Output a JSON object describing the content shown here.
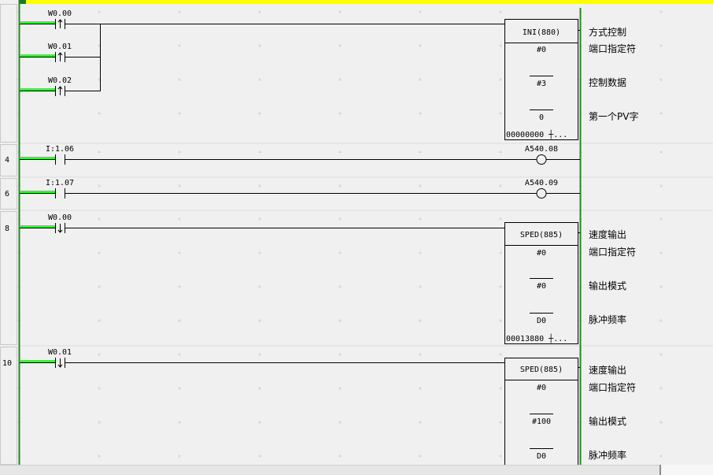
{
  "colors": {
    "power_rail": "#1e8c1e",
    "energized": "#3cf03c",
    "selection_bar": "#ffff00",
    "right_rail": "#1e8c1e"
  },
  "rungs": [
    {
      "number": "",
      "contacts": [
        {
          "address": "W0.00",
          "type": "rising-edge"
        },
        {
          "address": "W0.01",
          "type": "rising-edge"
        },
        {
          "address": "W0.02",
          "type": "rising-edge"
        }
      ],
      "instruction": {
        "name": "INI(880)",
        "operands": [
          "#0",
          "#3",
          "0"
        ],
        "footer": "00000000 ┼...",
        "comments": [
          "方式控制",
          "端口指定符",
          "控制数据",
          "第一个PV字"
        ]
      }
    },
    {
      "number": "4",
      "contacts": [
        {
          "address": "I:1.06",
          "type": "normally-open"
        }
      ],
      "coil": "A540.08"
    },
    {
      "number": "6",
      "contacts": [
        {
          "address": "I:1.07",
          "type": "normally-open"
        }
      ],
      "coil": "A540.09"
    },
    {
      "number": "8",
      "contacts": [
        {
          "address": "W0.00",
          "type": "falling-edge"
        }
      ],
      "instruction": {
        "name": "SPED(885)",
        "operands": [
          "#0",
          "#0",
          "D0"
        ],
        "footer": "00013880 ┼...",
        "comments": [
          "速度输出",
          "端口指定符",
          "输出模式",
          "脉冲频率"
        ]
      }
    },
    {
      "number": "10",
      "contacts": [
        {
          "address": "W0.01",
          "type": "falling-edge"
        }
      ],
      "instruction": {
        "name": "SPED(885)",
        "operands": [
          "#0",
          "#100",
          "D0"
        ],
        "comments": [
          "速度输出",
          "端口指定符",
          "输出模式",
          "脉冲频率"
        ]
      }
    }
  ]
}
